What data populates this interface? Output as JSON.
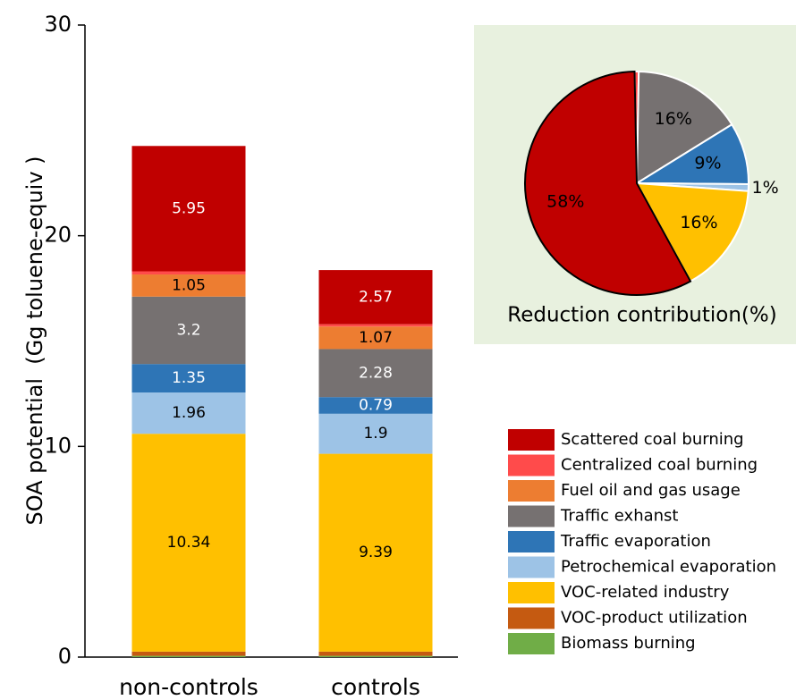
{
  "chart_data": [
    {
      "type": "bar",
      "stacked": true,
      "ylabel": "SOA potential  (Gg toluene-equiv )",
      "categories": [
        "non-controls",
        "controls"
      ],
      "ylim": [
        0,
        30
      ],
      "yticks": [
        0,
        10,
        20,
        30
      ],
      "series": [
        {
          "name": "Scattered coal burning",
          "color": "#c00000",
          "values": [
            5.95,
            2.57
          ]
        },
        {
          "name": "Centralized coal burning",
          "color": "#ff4b4b",
          "values": [
            0.15,
            0.11
          ]
        },
        {
          "name": "Fuel oil and gas usage",
          "color": "#ed7d31",
          "values": [
            1.05,
            1.07
          ]
        },
        {
          "name": "Traffic exhanst",
          "color": "#767171",
          "values": [
            3.2,
            2.28
          ]
        },
        {
          "name": "Traffic evaporation",
          "color": "#2e75b6",
          "values": [
            1.35,
            0.79
          ]
        },
        {
          "name": "Petrochemical evaporation",
          "color": "#9dc3e6",
          "values": [
            1.96,
            1.9
          ]
        },
        {
          "name": "VOC-related industry",
          "color": "#ffc000",
          "values": [
            10.34,
            9.39
          ]
        },
        {
          "name": "VOC-product utilization",
          "color": "#c55a11",
          "values": [
            0.2,
            0.2
          ]
        },
        {
          "name": "Biomass burning",
          "color": "#70ad47",
          "values": [
            0.06,
            0.06
          ]
        }
      ]
    },
    {
      "type": "pie",
      "title": "Reduction contribution(%)",
      "values": [
        0.6,
        16,
        9,
        1,
        16,
        58
      ],
      "value_labels": [
        null,
        "16%",
        "9%",
        "1%",
        "16%",
        "58%"
      ],
      "colors": [
        "#ff4b4b",
        "#767171",
        "#2e75b6",
        "#9dc3e6",
        "#ffc000",
        "#c00000"
      ]
    }
  ]
}
